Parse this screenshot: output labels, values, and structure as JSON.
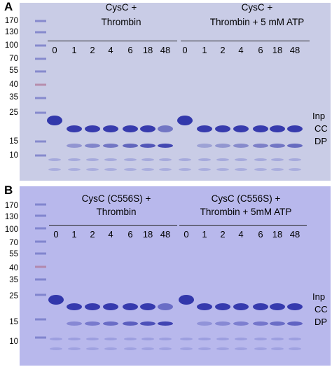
{
  "panels": [
    {
      "letter": "A",
      "groups": [
        {
          "title_line1": "CysC +",
          "title_line2": "Thrombin"
        },
        {
          "title_line1": "CysC +",
          "title_line2": "Thrombin + 5 mM ATP"
        }
      ],
      "mw_markers": [
        "170",
        "130",
        "100",
        "70",
        "55",
        "40",
        "35",
        "25",
        "15",
        "10"
      ],
      "lanes": [
        "0",
        "1",
        "2",
        "4",
        "6",
        "18",
        "48"
      ],
      "band_labels": [
        "Inp",
        "CC",
        "DP"
      ]
    },
    {
      "letter": "B",
      "groups": [
        {
          "title_line1": "CysC (C556S) +",
          "title_line2": "Thrombin"
        },
        {
          "title_line1": "CysC (C556S) +",
          "title_line2": "Thrombin + 5mM ATP"
        }
      ],
      "mw_markers": [
        "170",
        "130",
        "100",
        "70",
        "55",
        "40",
        "35",
        "25",
        "15",
        "10"
      ],
      "lanes": [
        "0",
        "1",
        "2",
        "4",
        "6",
        "18",
        "48"
      ],
      "band_labels": [
        "Inp",
        "CC",
        "DP"
      ]
    }
  ],
  "colors": {
    "gel_background_a": "#c9cce6",
    "gel_background_b": "#b8b8ec",
    "band": "#2a2fa8"
  }
}
